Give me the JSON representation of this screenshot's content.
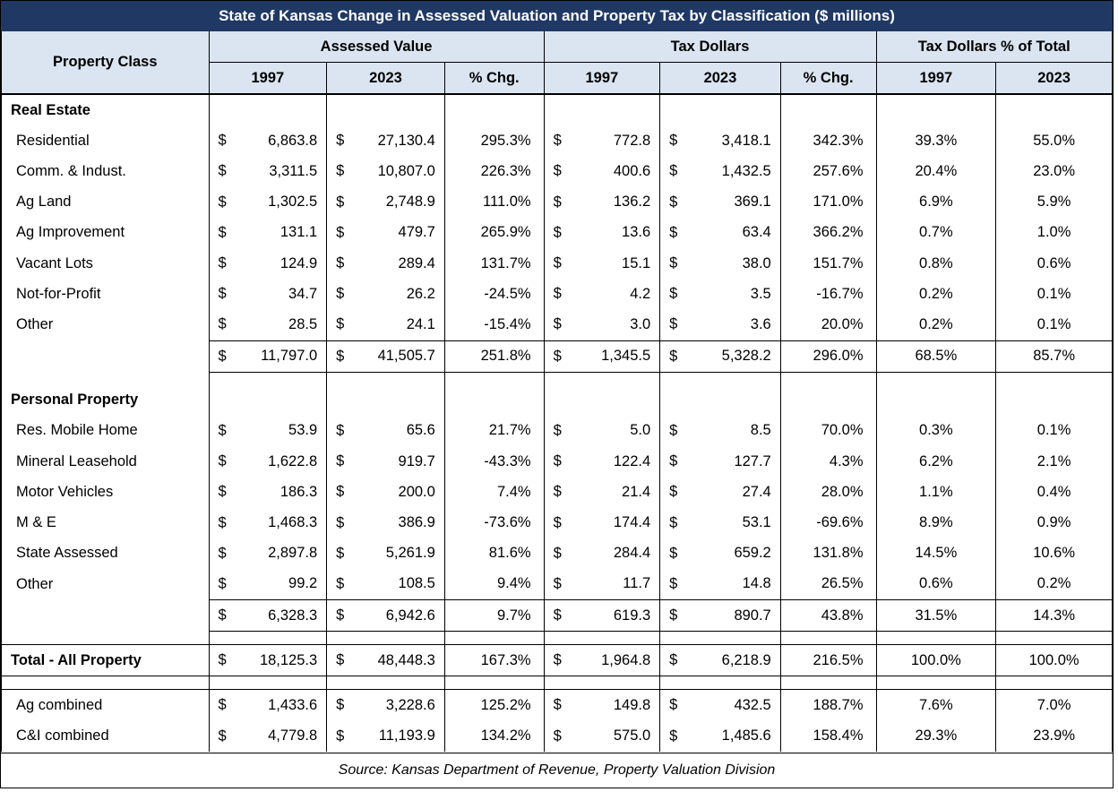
{
  "title": "State of Kansas Change in Assessed Valuation and Property Tax by Classification ($ millions)",
  "header": {
    "property_class": "Property Class",
    "groups": [
      "Assessed Value",
      "Tax Dollars",
      "Tax Dollars % of Total"
    ],
    "subcols": [
      "1997",
      "2023",
      "% Chg.",
      "1997",
      "2023",
      "% Chg.",
      "1997",
      "2023"
    ]
  },
  "sections": {
    "real_estate": "Real Estate",
    "personal_property": "Personal Property"
  },
  "rows": {
    "residential": [
      "Residential",
      "6,863.8",
      "27,130.4",
      "295.3%",
      "772.8",
      "3,418.1",
      "342.3%",
      "39.3%",
      "55.0%"
    ],
    "comm_indust": [
      "Comm. & Indust.",
      "3,311.5",
      "10,807.0",
      "226.3%",
      "400.6",
      "1,432.5",
      "257.6%",
      "20.4%",
      "23.0%"
    ],
    "ag_land": [
      "Ag Land",
      "1,302.5",
      "2,748.9",
      "111.0%",
      "136.2",
      "369.1",
      "171.0%",
      "6.9%",
      "5.9%"
    ],
    "ag_improvement": [
      "Ag Improvement",
      "131.1",
      "479.7",
      "265.9%",
      "13.6",
      "63.4",
      "366.2%",
      "0.7%",
      "1.0%"
    ],
    "vacant_lots": [
      "Vacant Lots",
      "124.9",
      "289.4",
      "131.7%",
      "15.1",
      "38.0",
      "151.7%",
      "0.8%",
      "0.6%"
    ],
    "not_for_profit": [
      "Not-for-Profit",
      "34.7",
      "26.2",
      "-24.5%",
      "4.2",
      "3.5",
      "-16.7%",
      "0.2%",
      "0.1%"
    ],
    "re_other": [
      "Other",
      "28.5",
      "24.1",
      "-15.4%",
      "3.0",
      "3.6",
      "20.0%",
      "0.2%",
      "0.1%"
    ],
    "re_subtotal": [
      "",
      "11,797.0",
      "41,505.7",
      "251.8%",
      "1,345.5",
      "5,328.2",
      "296.0%",
      "68.5%",
      "85.7%"
    ],
    "res_mobile_home": [
      "Res. Mobile Home",
      "53.9",
      "65.6",
      "21.7%",
      "5.0",
      "8.5",
      "70.0%",
      "0.3%",
      "0.1%"
    ],
    "mineral_leasehold": [
      "Mineral Leasehold",
      "1,622.8",
      "919.7",
      "-43.3%",
      "122.4",
      "127.7",
      "4.3%",
      "6.2%",
      "2.1%"
    ],
    "motor_vehicles": [
      "Motor Vehicles",
      "186.3",
      "200.0",
      "7.4%",
      "21.4",
      "27.4",
      "28.0%",
      "1.1%",
      "0.4%"
    ],
    "m_and_e": [
      "M & E",
      "1,468.3",
      "386.9",
      "-73.6%",
      "174.4",
      "53.1",
      "-69.6%",
      "8.9%",
      "0.9%"
    ],
    "state_assessed": [
      "State Assessed",
      "2,897.8",
      "5,261.9",
      "81.6%",
      "284.4",
      "659.2",
      "131.8%",
      "14.5%",
      "10.6%"
    ],
    "pp_other": [
      "Other",
      "99.2",
      "108.5",
      "9.4%",
      "11.7",
      "14.8",
      "26.5%",
      "0.6%",
      "0.2%"
    ],
    "pp_subtotal": [
      "",
      "6,328.3",
      "6,942.6",
      "9.7%",
      "619.3",
      "890.7",
      "43.8%",
      "31.5%",
      "14.3%"
    ],
    "total_all": [
      "Total - All Property",
      "18,125.3",
      "48,448.3",
      "167.3%",
      "1,964.8",
      "6,218.9",
      "216.5%",
      "100.0%",
      "100.0%"
    ],
    "ag_combined": [
      "Ag combined",
      "1,433.6",
      "3,228.6",
      "125.2%",
      "149.8",
      "432.5",
      "188.7%",
      "7.6%",
      "7.0%"
    ],
    "ci_combined": [
      "C&I combined",
      "4,779.8",
      "11,193.9",
      "134.2%",
      "575.0",
      "1,485.6",
      "158.4%",
      "29.3%",
      "23.9%"
    ]
  },
  "currency_symbol": "$",
  "source": "Source: Kansas Department of Revenue, Property Valuation Division",
  "colors": {
    "title_bg": "#1f3864",
    "header_bg": "#dbe5f1"
  }
}
